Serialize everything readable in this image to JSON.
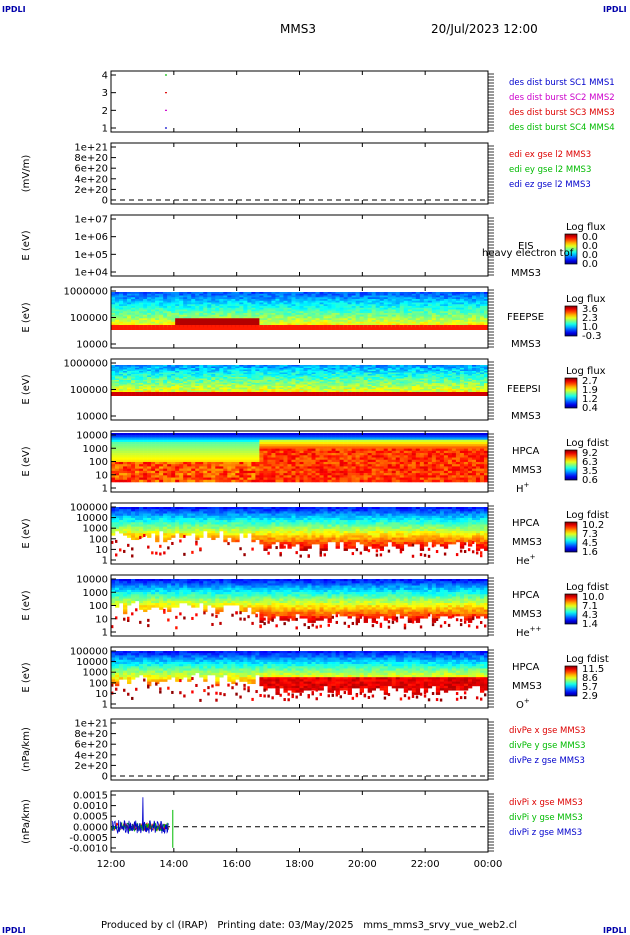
{
  "header": {
    "corner_label": "IPDLI",
    "mission": "MMS3",
    "datetime": "20/Jul/2023 12:00"
  },
  "footer": {
    "text": "Produced by cl (IRAP)   Printing date: 03/May/2025   mms_mms3_srvy_vue_web2.cl"
  },
  "time_axis": {
    "ticks": [
      "12:00",
      "14:00",
      "16:00",
      "18:00",
      "20:00",
      "22:00",
      "00:00"
    ]
  },
  "colors": {
    "mms1": "#0000cc",
    "mms2": "#cc00cc",
    "mms3": "#dd0000",
    "mms4": "#00bb00"
  },
  "chart_data": [
    {
      "type": "scatter",
      "id": "panel1",
      "yticks": [
        "4",
        "3",
        "2",
        "1"
      ],
      "ylim": [
        0.5,
        4.5
      ],
      "points": [
        {
          "x": "13:45",
          "y": 4,
          "color": "#00bb00"
        },
        {
          "x": "13:45",
          "y": 3,
          "color": "#dd0000"
        },
        {
          "x": "13:45",
          "y": 2,
          "color": "#cc00cc"
        },
        {
          "x": "13:45",
          "y": 1,
          "color": "#0000cc"
        }
      ],
      "legend": [
        {
          "text": "des dist burst SC1 MMS1",
          "color": "#0000cc"
        },
        {
          "text": "des dist burst SC2 MMS2",
          "color": "#cc00cc"
        },
        {
          "text": "des dist burst SC3 MMS3",
          "color": "#dd0000"
        },
        {
          "text": "des dist burst SC4 MMS4",
          "color": "#00bb00"
        }
      ]
    },
    {
      "type": "line",
      "id": "panel2",
      "ylabel": "(mV/m)",
      "yticks": [
        "1e+21",
        "8e+20",
        "6e+20",
        "4e+20",
        "2e+20",
        "0"
      ],
      "ylim": [
        0,
        1.1e+21
      ],
      "legend": [
        {
          "text": "edi ex gse l2 MMS3",
          "color": "#dd0000"
        },
        {
          "text": "edi ey gse l2 MMS3",
          "color": "#00bb00"
        },
        {
          "text": "edi ez gse l2 MMS3",
          "color": "#0000cc"
        }
      ]
    },
    {
      "type": "heatmap",
      "id": "panel3",
      "ylabel": "E (eV)",
      "yticks": [
        "1e+07",
        "1e+06",
        "1e+05",
        "1e+04"
      ],
      "side_labels": [
        "EIS",
        "heavy electron tof",
        "MMS3"
      ],
      "colorbar_title": "Log flux",
      "colorbar_ticks": [
        "0.0",
        "0.0",
        "0.0",
        "0.0"
      ]
    },
    {
      "type": "heatmap",
      "id": "panel4",
      "ylabel": "E (eV)",
      "yticks": [
        "1000000",
        "100000",
        "10000"
      ],
      "side_labels": [
        "FEEPSE",
        "MMS3"
      ],
      "colorbar_title": "Log flux",
      "colorbar_ticks": [
        "3.6",
        "2.3",
        "1.0",
        "-0.3"
      ]
    },
    {
      "type": "heatmap",
      "id": "panel5",
      "ylabel": "E (eV)",
      "yticks": [
        "1000000",
        "100000",
        "10000"
      ],
      "side_labels": [
        "FEEPSI",
        "MMS3"
      ],
      "colorbar_title": "Log flux",
      "colorbar_ticks": [
        "2.7",
        "1.9",
        "1.2",
        "0.4"
      ]
    },
    {
      "type": "heatmap",
      "id": "panel6",
      "ylabel": "E (eV)",
      "yticks": [
        "10000",
        "1000",
        "100",
        "10",
        "1"
      ],
      "side_labels": [
        "HPCA",
        "MMS3",
        "H+"
      ],
      "colorbar_title": "Log fdist",
      "colorbar_ticks": [
        "9.2",
        "6.3",
        "3.5",
        "0.6"
      ]
    },
    {
      "type": "heatmap",
      "id": "panel7",
      "ylabel": "E (eV)",
      "yticks": [
        "100000",
        "10000",
        "1000",
        "100",
        "10",
        "1"
      ],
      "side_labels": [
        "HPCA",
        "MMS3",
        "He+"
      ],
      "colorbar_title": "Log fdist",
      "colorbar_ticks": [
        "10.2",
        "7.3",
        "4.5",
        "1.6"
      ]
    },
    {
      "type": "heatmap",
      "id": "panel8",
      "ylabel": "E (eV)",
      "yticks": [
        "10000",
        "1000",
        "100",
        "10",
        "1"
      ],
      "side_labels": [
        "HPCA",
        "MMS3",
        "He++"
      ],
      "colorbar_title": "Log fdist",
      "colorbar_ticks": [
        "10.0",
        "7.1",
        "4.3",
        "1.4"
      ]
    },
    {
      "type": "heatmap",
      "id": "panel9",
      "ylabel": "E (eV)",
      "yticks": [
        "100000",
        "10000",
        "1000",
        "100",
        "10",
        "1"
      ],
      "side_labels": [
        "HPCA",
        "MMS3",
        "O+"
      ],
      "colorbar_title": "Log fdist",
      "colorbar_ticks": [
        "11.5",
        "8.6",
        "5.7",
        "2.9"
      ]
    },
    {
      "type": "line",
      "id": "panel10",
      "ylabel": "(nPa/km)",
      "yticks": [
        "1e+21",
        "8e+20",
        "6e+20",
        "4e+20",
        "2e+20",
        "0"
      ],
      "ylim": [
        0,
        1.1e+21
      ],
      "legend": [
        {
          "text": "divPe x gse MMS3",
          "color": "#dd0000"
        },
        {
          "text": "divPe y gse MMS3",
          "color": "#00bb00"
        },
        {
          "text": "divPe z gse MMS3",
          "color": "#0000cc"
        }
      ]
    },
    {
      "type": "line",
      "id": "panel11",
      "ylabel": "(nPa/km)",
      "yticks": [
        "0.0015",
        "0.0010",
        "0.0005",
        "0.0000",
        "-0.0005",
        "-0.0010"
      ],
      "ylim": [
        -0.0012,
        0.0017
      ],
      "legend": [
        {
          "text": "divPi x gse MMS3",
          "color": "#dd0000"
        },
        {
          "text": "divPi y gse MMS3",
          "color": "#00bb00"
        },
        {
          "text": "divPi z gse MMS3",
          "color": "#0000cc"
        }
      ]
    }
  ]
}
